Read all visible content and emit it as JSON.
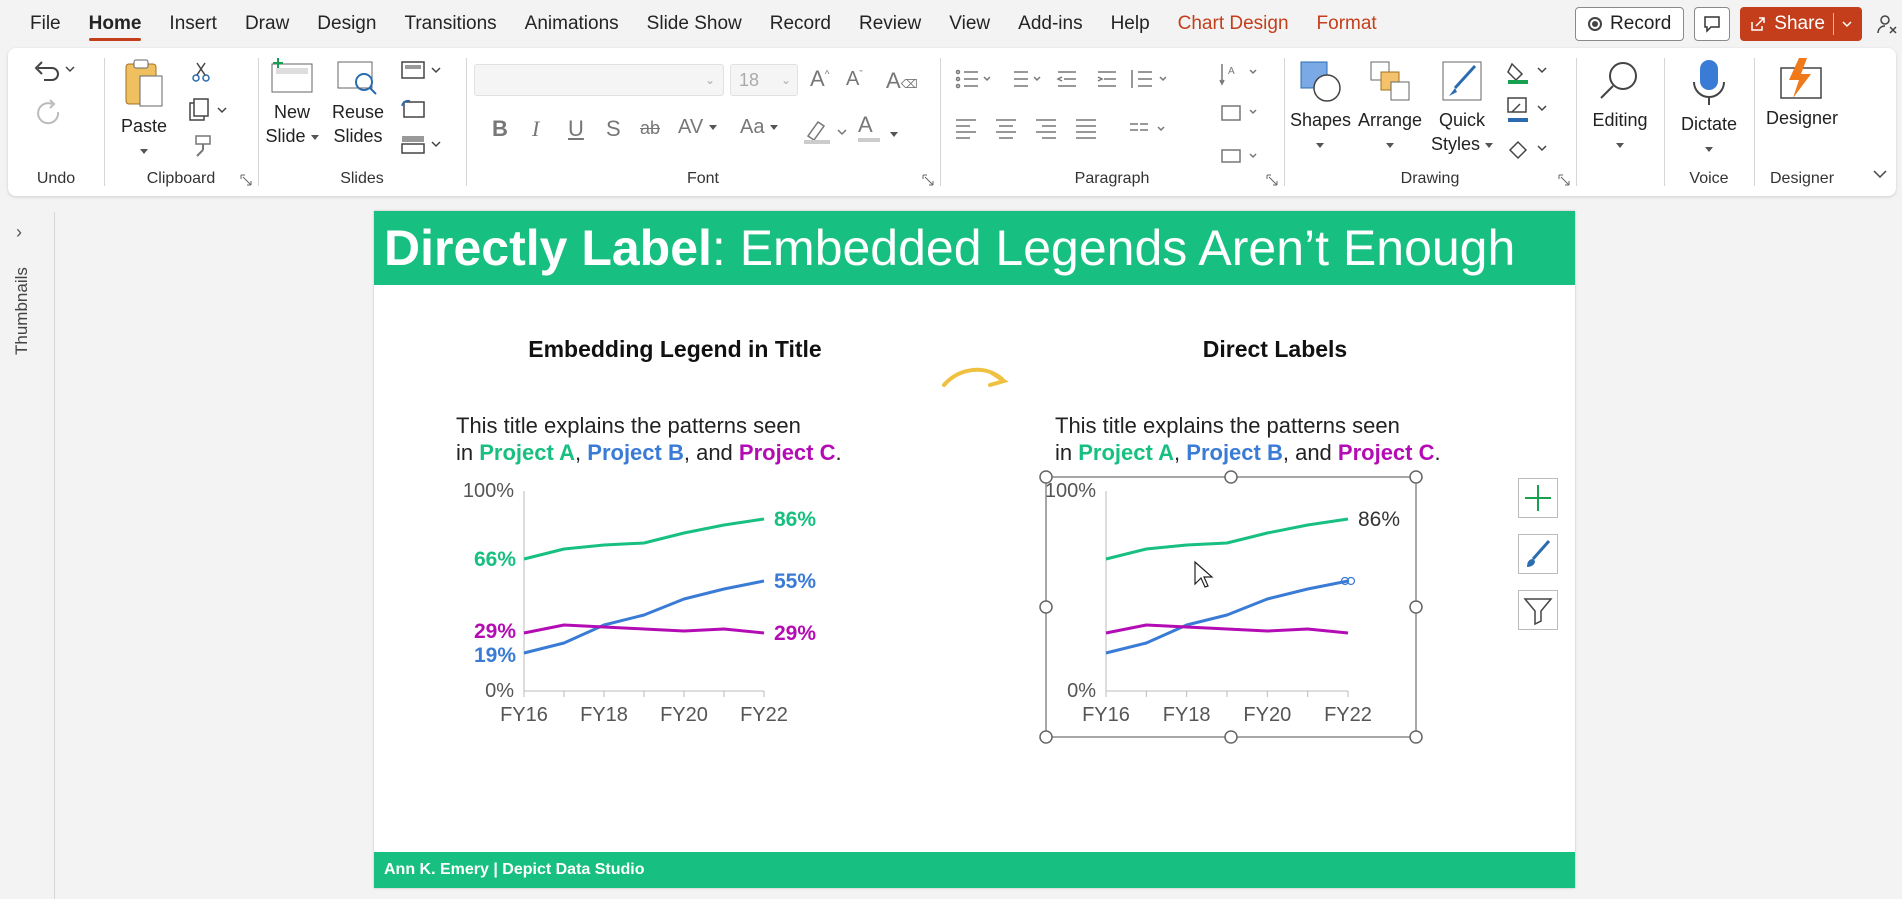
{
  "menu": {
    "tabs": [
      "File",
      "Home",
      "Insert",
      "Draw",
      "Design",
      "Transitions",
      "Animations",
      "Slide Show",
      "Record",
      "Review",
      "View",
      "Add-ins",
      "Help"
    ],
    "context_tabs": [
      "Chart Design",
      "Format"
    ],
    "active_tab": "Home",
    "record_label": "Record",
    "share_label": "Share",
    "accent_color": "#c43e1c"
  },
  "ribbon": {
    "undo": {
      "group_label": "Undo"
    },
    "clipboard": {
      "paste_label": "Paste",
      "group_label": "Clipboard"
    },
    "slides": {
      "new_slide_label": "New Slide",
      "new_slide_line1": "New",
      "new_slide_line2": "Slide",
      "reuse_line1": "Reuse",
      "reuse_line2": "Slides",
      "group_label": "Slides"
    },
    "font": {
      "font_size": "18",
      "group_label": "Font"
    },
    "paragraph": {
      "group_label": "Paragraph"
    },
    "drawing": {
      "shapes_label": "Shapes",
      "arrange_label": "Arrange",
      "quick_line1": "Quick",
      "quick_line2": "Styles",
      "group_label": "Drawing"
    },
    "editing": {
      "label": "Editing"
    },
    "voice": {
      "dictate_label": "Dictate",
      "group_label": "Voice"
    },
    "designer": {
      "label": "Designer",
      "group_label": "Designer"
    }
  },
  "thumbnails": {
    "label": "Thumbnails"
  },
  "slide": {
    "header_bold": "Directly Label",
    "header_rest": ": Embedded Legends Aren’t Enough",
    "footer": "Ann K. Emery  |  Depict Data Studio",
    "brand_color": "#17c081",
    "left_panel_title": "Embedding Legend in Title",
    "right_panel_title": "Direct Labels",
    "subtitle_line1": "This title explains the patterns seen",
    "subtitle_in": "in ",
    "subtitle_a": "Project A",
    "subtitle_comma1": ", ",
    "subtitle_b": "Project B",
    "subtitle_and": ", and ",
    "subtitle_c": "Project C",
    "subtitle_end": "."
  },
  "chart_data": [
    {
      "type": "line",
      "x": [
        "FY16",
        "FY17",
        "FY18",
        "FY19",
        "FY20",
        "FY21",
        "FY22"
      ],
      "xticklabels": [
        "FY16",
        "FY18",
        "FY20",
        "FY22"
      ],
      "ylim": [
        0,
        100
      ],
      "yticklabels": [
        "100%",
        "0%"
      ],
      "series": [
        {
          "name": "Project A",
          "color": "#17c081",
          "values": [
            66,
            71,
            73,
            74,
            79,
            83,
            86
          ]
        },
        {
          "name": "Project B",
          "color": "#3a7bd5",
          "values": [
            19,
            24,
            33,
            38,
            46,
            51,
            55
          ]
        },
        {
          "name": "Project C",
          "color": "#b40cb4",
          "values": [
            29,
            33,
            32,
            31,
            30,
            31,
            29
          ]
        }
      ],
      "data_labels": {
        "start": [
          "66%",
          "19%",
          "29%"
        ],
        "end": [
          "86%",
          "55%",
          "29%"
        ]
      }
    },
    {
      "type": "line",
      "x": [
        "FY16",
        "FY17",
        "FY18",
        "FY19",
        "FY20",
        "FY21",
        "FY22"
      ],
      "xticklabels": [
        "FY16",
        "FY18",
        "FY20",
        "FY22"
      ],
      "ylim": [
        0,
        100
      ],
      "yticklabels": [
        "100%",
        "0%"
      ],
      "series": [
        {
          "name": "Project A",
          "color": "#17c081",
          "values": [
            66,
            71,
            73,
            74,
            79,
            83,
            86
          ]
        },
        {
          "name": "Project B",
          "color": "#3a7bd5",
          "values": [
            19,
            24,
            33,
            38,
            46,
            51,
            55
          ]
        },
        {
          "name": "Project C",
          "color": "#b40cb4",
          "values": [
            29,
            33,
            32,
            31,
            30,
            31,
            29
          ]
        }
      ],
      "data_labels": {
        "end": [
          "86%"
        ]
      }
    }
  ]
}
